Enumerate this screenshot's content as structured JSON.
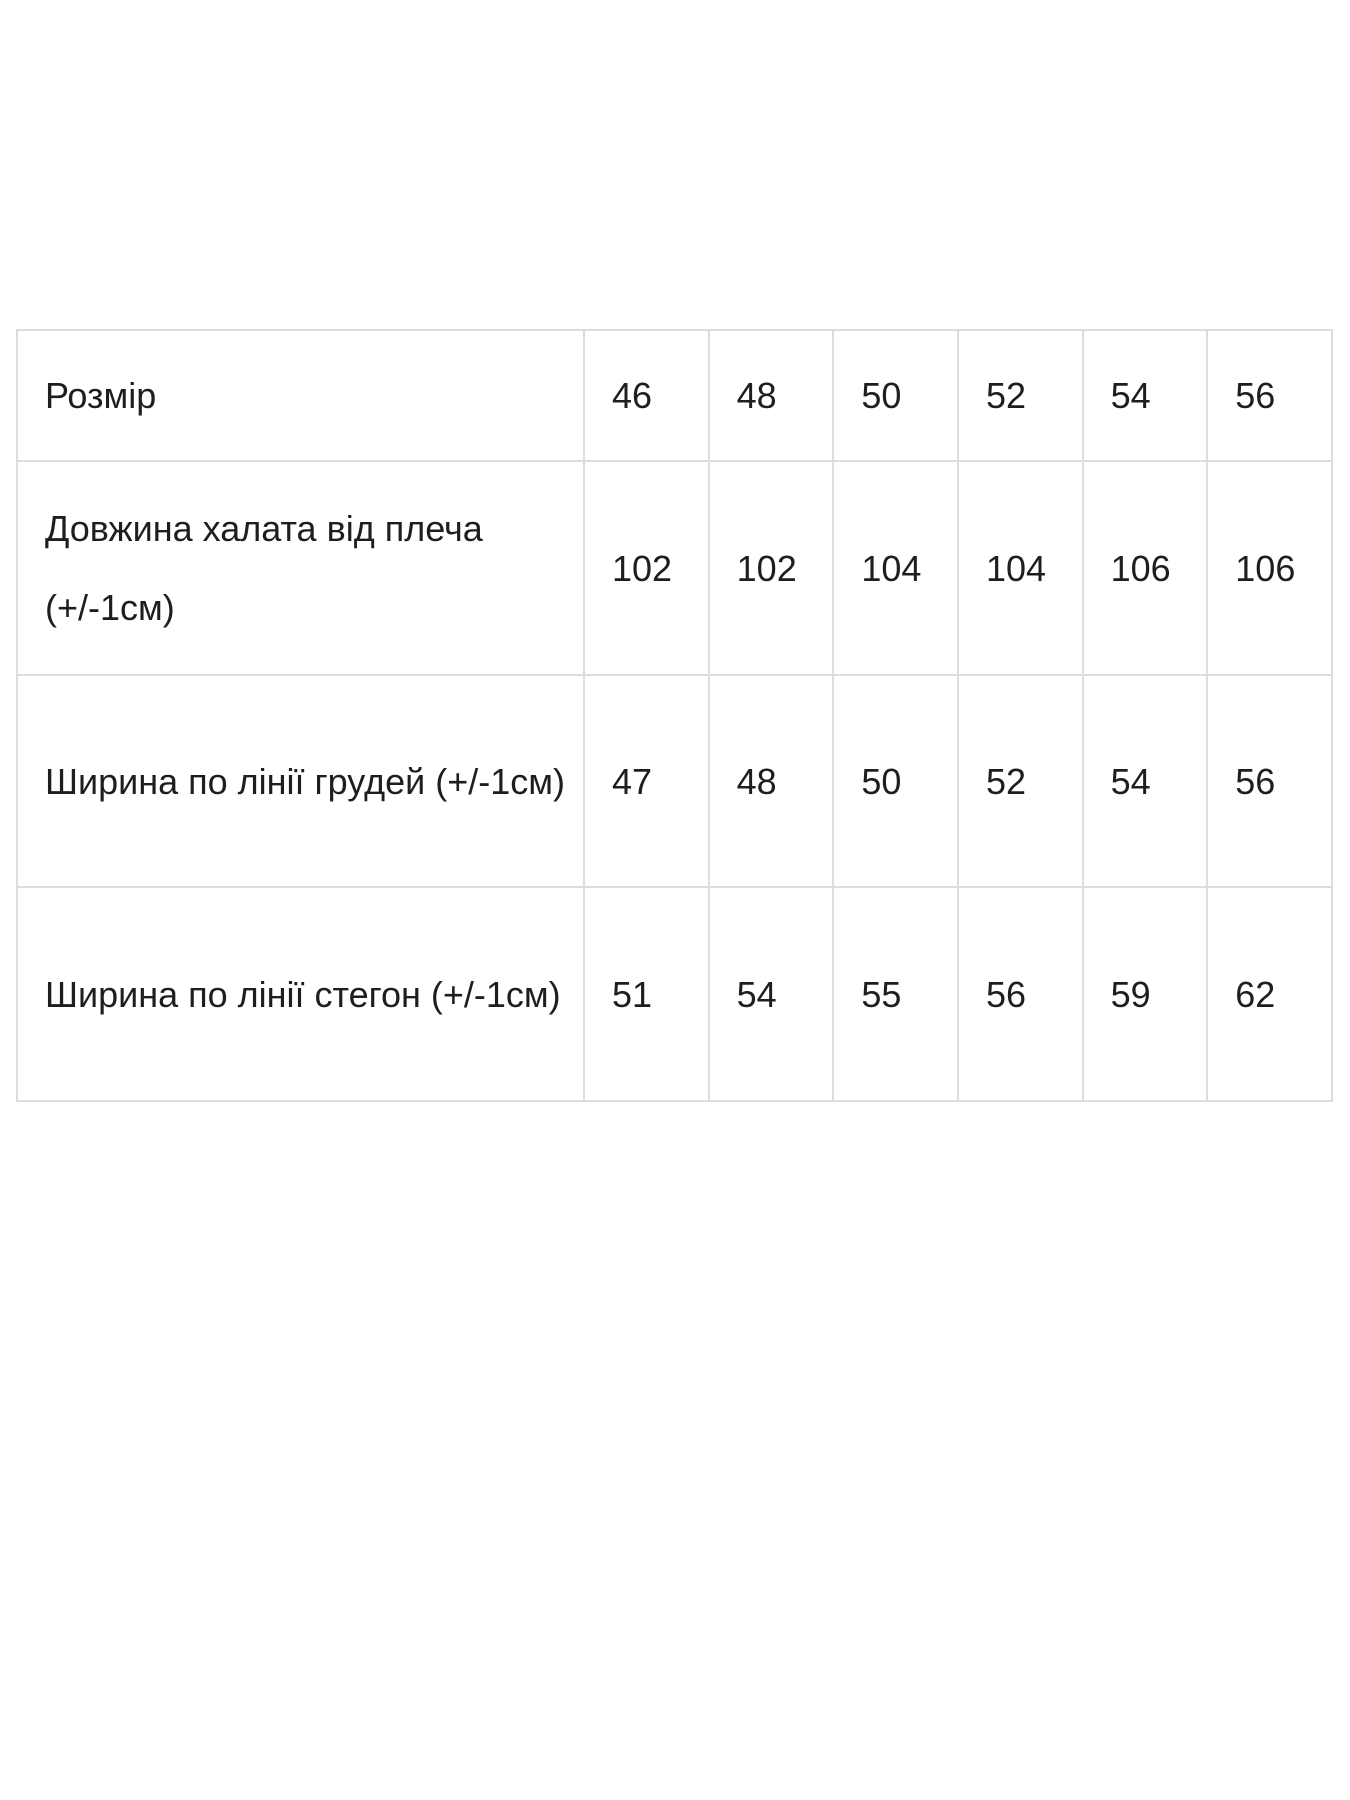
{
  "size_table": {
    "rows": [
      {
        "label": "Розмір",
        "values": [
          "46",
          "48",
          "50",
          "52",
          "54",
          "56"
        ]
      },
      {
        "label": "Довжина халата від плеча (+/-1см)",
        "values": [
          "102",
          "102",
          "104",
          "104",
          "106",
          "106"
        ]
      },
      {
        "label": "Ширина по лінії грудей (+/-1см)",
        "values": [
          "47",
          "48",
          "50",
          "52",
          "54",
          "56"
        ]
      },
      {
        "label": "Ширина по лінії стегон (+/-1см)",
        "values": [
          "51",
          "54",
          "55",
          "56",
          "59",
          "62"
        ]
      }
    ]
  }
}
